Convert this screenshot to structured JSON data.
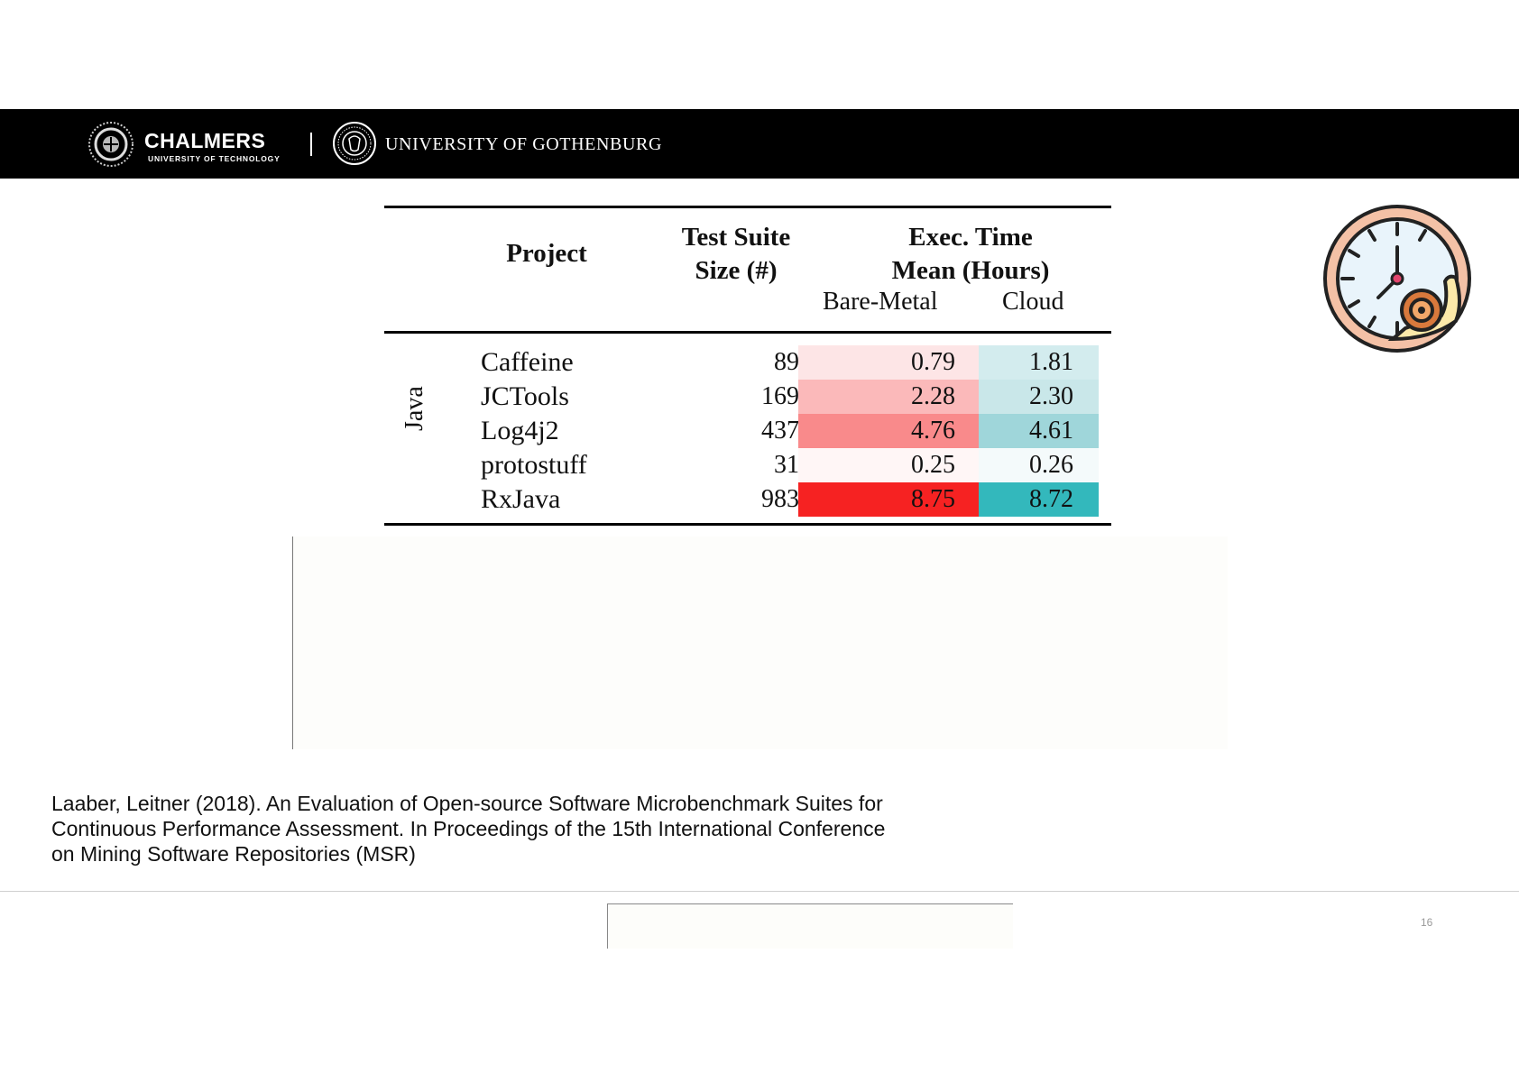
{
  "header": {
    "chalmers_name": "CHALMERS",
    "chalmers_sub": "UNIVERSITY OF TECHNOLOGY",
    "gu_name": "UNIVERSITY OF GOTHENBURG"
  },
  "table": {
    "col_project": "Project",
    "col_size_line1": "Test Suite",
    "col_size_line2": "Size (#)",
    "col_time_line1": "Exec. Time",
    "col_time_line2": "Mean (Hours)",
    "sub_bare_metal": "Bare-Metal",
    "sub_cloud": "Cloud",
    "group_label": "Java",
    "rows": [
      {
        "project": "Caffeine",
        "size": "89",
        "bare_metal": "0.79",
        "cloud": "1.81",
        "bm_color": "#fde5e6",
        "cl_color": "#d3ecee"
      },
      {
        "project": "JCTools",
        "size": "169",
        "bare_metal": "2.28",
        "cloud": "2.30",
        "bm_color": "#fbb9ba",
        "cl_color": "#c9e7e9"
      },
      {
        "project": "Log4j2",
        "size": "437",
        "bare_metal": "4.76",
        "cloud": "4.61",
        "bm_color": "#f98a8b",
        "cl_color": "#9fd6da"
      },
      {
        "project": "protostuff",
        "size": "31",
        "bare_metal": "0.25",
        "cloud": "0.26",
        "bm_color": "#fff6f6",
        "cl_color": "#f4fafb"
      },
      {
        "project": "RxJava",
        "size": "983",
        "bare_metal": "8.75",
        "cloud": "8.72",
        "bm_color": "#f62222",
        "cl_color": "#33b8bc"
      }
    ]
  },
  "citation": "Laaber, Leitner (2018). An Evaluation of Open-source Software Microbenchmark Suites for\nContinuous Performance Assessment. In Proceedings of the 15th International Conference\non Mining Software Repositories (MSR)",
  "page_number": "16",
  "icons": {
    "chalmers_logo": "chalmers-seal-icon",
    "gu_logo": "gothenburg-seal-icon",
    "clock": "slow-clock-snail-icon"
  }
}
